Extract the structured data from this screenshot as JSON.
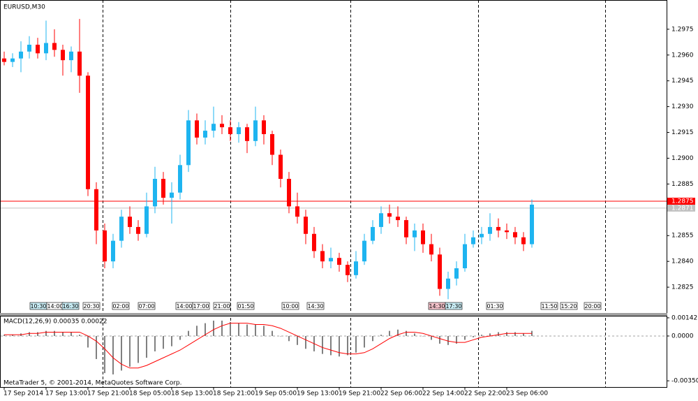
{
  "chart_data": {
    "type": "candlestick",
    "title": "EURUSD,M30",
    "up_color": "#1eb4f0",
    "down_color": "#ff0000",
    "categories": [
      "17 Sep 2014",
      null,
      null,
      null,
      null,
      "17 Sep 13:00",
      null,
      null,
      null,
      null,
      "17 Sep 21:00",
      null,
      null,
      null,
      null,
      "18 Sep 05:00",
      null,
      null,
      null,
      null,
      "18 Sep 13:00",
      null,
      null,
      null,
      null,
      "18 Sep 21:00",
      null,
      null,
      null,
      null,
      "19 Sep 05:00",
      null,
      null,
      null,
      null,
      "19 Sep 13:00",
      null,
      null,
      null,
      null,
      "19 Sep 21:00",
      null,
      null,
      null,
      null,
      "22 Sep 06:00",
      null,
      null,
      null,
      null,
      "22 Sep 14:00",
      null,
      null,
      null,
      null,
      "22 Sep 22:00",
      null,
      null,
      null,
      null,
      "23 Sep 06:00",
      null,
      null,
      null
    ],
    "candles": [
      [
        1.2958,
        1.2962,
        1.2954,
        1.2956
      ],
      [
        1.2956,
        1.2961,
        1.2953,
        1.2958
      ],
      [
        1.2958,
        1.2968,
        1.295,
        1.2962
      ],
      [
        1.2962,
        1.2971,
        1.2958,
        1.2966
      ],
      [
        1.2966,
        1.297,
        1.2958,
        1.2961
      ],
      [
        1.2961,
        1.298,
        1.2957,
        1.2967
      ],
      [
        1.2967,
        1.2975,
        1.2959,
        1.2963
      ],
      [
        1.2963,
        1.2966,
        1.2948,
        1.2957
      ],
      [
        1.2957,
        1.2965,
        1.295,
        1.2962
      ],
      [
        1.2962,
        1.2981,
        1.2938,
        1.2948
      ],
      [
        1.2948,
        1.295,
        1.2878,
        1.2882
      ],
      [
        1.2882,
        1.2886,
        1.285,
        1.2858
      ],
      [
        1.2858,
        1.2862,
        1.2836,
        1.284
      ],
      [
        1.284,
        1.2856,
        1.2836,
        1.2852
      ],
      [
        1.2852,
        1.287,
        1.2848,
        1.2866
      ],
      [
        1.2866,
        1.2872,
        1.2856,
        1.286
      ],
      [
        1.286,
        1.2864,
        1.2852,
        1.2856
      ],
      [
        1.2856,
        1.288,
        1.2854,
        1.2872
      ],
      [
        1.2872,
        1.2895,
        1.2868,
        1.2888
      ],
      [
        1.2888,
        1.2892,
        1.2873,
        1.2877
      ],
      [
        1.2877,
        1.2886,
        1.2862,
        1.288
      ],
      [
        1.288,
        1.2902,
        1.2876,
        1.2896
      ],
      [
        1.2896,
        1.2928,
        1.2892,
        1.2922
      ],
      [
        1.2922,
        1.2926,
        1.2908,
        1.2912
      ],
      [
        1.2912,
        1.2922,
        1.2908,
        1.2916
      ],
      [
        1.2916,
        1.293,
        1.2912,
        1.292
      ],
      [
        1.292,
        1.2925,
        1.2914,
        1.2918
      ],
      [
        1.2918,
        1.2922,
        1.291,
        1.2914
      ],
      [
        1.2914,
        1.2921,
        1.2909,
        1.2918
      ],
      [
        1.2918,
        1.292,
        1.2903,
        1.291
      ],
      [
        1.291,
        1.293,
        1.2907,
        1.2922
      ],
      [
        1.2922,
        1.2925,
        1.2908,
        1.2914
      ],
      [
        1.2914,
        1.2916,
        1.2896,
        1.2902
      ],
      [
        1.2902,
        1.2905,
        1.2883,
        1.2888
      ],
      [
        1.2888,
        1.2892,
        1.2868,
        1.2872
      ],
      [
        1.2872,
        1.288,
        1.2862,
        1.2866
      ],
      [
        1.2866,
        1.287,
        1.285,
        1.2856
      ],
      [
        1.2856,
        1.286,
        1.2842,
        1.2846
      ],
      [
        1.2846,
        1.285,
        1.2836,
        1.284
      ],
      [
        1.284,
        1.2848,
        1.2836,
        1.2842
      ],
      [
        1.2842,
        1.2845,
        1.2834,
        1.2838
      ],
      [
        1.2838,
        1.284,
        1.2828,
        1.2832
      ],
      [
        1.2832,
        1.2846,
        1.283,
        1.284
      ],
      [
        1.284,
        1.2856,
        1.2838,
        1.2852
      ],
      [
        1.2852,
        1.2864,
        1.285,
        1.286
      ],
      [
        1.286,
        1.2872,
        1.2856,
        1.2868
      ],
      [
        1.2868,
        1.2873,
        1.2862,
        1.2866
      ],
      [
        1.2866,
        1.2872,
        1.286,
        1.2864
      ],
      [
        1.2864,
        1.2866,
        1.285,
        1.2854
      ],
      [
        1.2854,
        1.2862,
        1.2846,
        1.2858
      ],
      [
        1.2858,
        1.2862,
        1.2845,
        1.285
      ],
      [
        1.285,
        1.2856,
        1.284,
        1.2844
      ],
      [
        1.2844,
        1.2848,
        1.282,
        1.2824
      ],
      [
        1.2824,
        1.2834,
        1.2818,
        1.283
      ],
      [
        1.283,
        1.284,
        1.2826,
        1.2836
      ],
      [
        1.2836,
        1.2856,
        1.2834,
        1.285
      ],
      [
        1.285,
        1.2858,
        1.2848,
        1.2854
      ],
      [
        1.2854,
        1.286,
        1.285,
        1.2856
      ],
      [
        1.2856,
        1.2868,
        1.2852,
        1.286
      ],
      [
        1.286,
        1.2865,
        1.2854,
        1.2858
      ],
      [
        1.2858,
        1.2862,
        1.2853,
        1.2857
      ],
      [
        1.2857,
        1.286,
        1.285,
        1.2854
      ],
      [
        1.2854,
        1.2857,
        1.2846,
        1.285
      ],
      [
        1.285,
        1.2876,
        1.2848,
        1.2873
      ]
    ],
    "ylim": [
      1.281,
      1.2992
    ],
    "yticks": [
      {
        "value": 1.2975,
        "label": "1.2975"
      },
      {
        "value": 1.296,
        "label": "1.2960"
      },
      {
        "value": 1.2945,
        "label": "1.2945"
      },
      {
        "value": 1.293,
        "label": "1.2930"
      },
      {
        "value": 1.2915,
        "label": "1.2915"
      },
      {
        "value": 1.29,
        "label": "1.2900"
      },
      {
        "value": 1.2885,
        "label": "1.2885"
      },
      {
        "value": 1.2855,
        "label": "1.2855"
      },
      {
        "value": 1.284,
        "label": "1.2840"
      },
      {
        "value": 1.2825,
        "label": "1.2825"
      }
    ],
    "ask_line": {
      "value": 1.2875,
      "label": "1.2875",
      "color": "#ff0000"
    },
    "bid_line": {
      "value": 1.2871,
      "label": "1.2871",
      "color": "#c0c0c0"
    },
    "events": [
      "10:30",
      "14:00",
      "16:30",
      "20:30",
      "02:00",
      "07:00",
      "14:00",
      "17:00",
      "21:00",
      "01:50",
      "10:00",
      "14:30",
      "14:30",
      "17:30",
      "01:30",
      "11:50",
      "15:20",
      "20:00"
    ],
    "macd": {
      "label": "MACD(12,26,9) 0.00035 0.00022",
      "histogram_color": "#808080",
      "signal_color": "#ff0000",
      "histogram": [
        0.0001,
        0.0001,
        0.0002,
        0.0003,
        0.0003,
        0.0004,
        0.0004,
        0.0003,
        0.0003,
        0.0001,
        -0.0009,
        -0.0018,
        -0.0029,
        -0.003,
        -0.0027,
        -0.0024,
        -0.0021,
        -0.0017,
        -0.0012,
        -0.001,
        -0.0008,
        -0.0003,
        0.0004,
        0.0008,
        0.001,
        0.0012,
        0.0012,
        0.0011,
        0.001,
        0.0009,
        0.0009,
        0.0008,
        0.0004,
        0,
        -0.0004,
        -0.0007,
        -0.001,
        -0.0012,
        -0.0014,
        -0.0015,
        -0.0016,
        -0.0015,
        -0.0013,
        -0.0009,
        -0.0004,
        0.0001,
        0.0004,
        0.0005,
        0.0004,
        0.0002,
        0,
        -0.0003,
        -0.0006,
        -0.0007,
        -0.0006,
        -0.0003,
        -0.0001,
        0.0001,
        0.0002,
        0.0003,
        0.0003,
        0.0003,
        0.0002,
        0.0004
      ],
      "signal": [
        0.0001,
        0.0001,
        0.0001,
        0.0002,
        0.0002,
        0.0003,
        0.0003,
        0.0003,
        0.0003,
        0.0003,
        0,
        -0.0004,
        -0.001,
        -0.0017,
        -0.0022,
        -0.0025,
        -0.0025,
        -0.0023,
        -0.002,
        -0.0017,
        -0.0014,
        -0.0011,
        -0.0007,
        -0.0003,
        0.0001,
        0.0005,
        0.0008,
        0.001,
        0.001,
        0.001,
        0.0009,
        0.0009,
        0.0008,
        0.0006,
        0.0003,
        0,
        -0.0003,
        -0.0006,
        -0.0009,
        -0.0011,
        -0.0013,
        -0.0014,
        -0.0014,
        -0.0013,
        -0.001,
        -0.0006,
        -0.0002,
        0.0001,
        0.0003,
        0.0003,
        0.0002,
        0,
        -0.0002,
        -0.0004,
        -0.0005,
        -0.0005,
        -0.0003,
        -0.0001,
        0,
        0.0001,
        0.0002,
        0.0002,
        0.0002,
        0.0002
      ],
      "ylim": [
        -0.00404,
        0.00158
      ],
      "yticks": [
        {
          "value": 0.00142,
          "label": "0.00142"
        },
        {
          "value": 0,
          "label": "0.0000"
        },
        {
          "value": -0.0035,
          "label": "-0.00350"
        }
      ]
    },
    "footer": "MetaTrader 5, © 2001-2014, MetaQuotes Software Corp."
  }
}
